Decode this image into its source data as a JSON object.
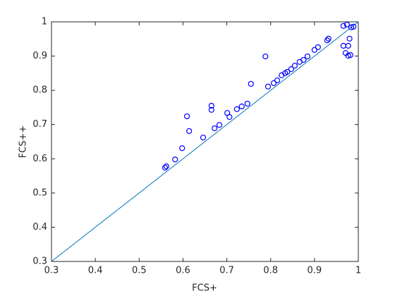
{
  "chart_data": {
    "type": "scatter",
    "xlabel": "FCS+",
    "ylabel": "FCS++",
    "xlim": [
      0.3,
      1
    ],
    "ylim": [
      0.3,
      1
    ],
    "xticks": [
      0.3,
      0.4,
      0.5,
      0.6,
      0.7,
      0.8,
      0.9,
      1
    ],
    "yticks": [
      0.3,
      0.4,
      0.5,
      0.6,
      0.7,
      0.8,
      0.9,
      1
    ],
    "grid": false,
    "reference_line": {
      "color": "#0072bd",
      "x": [
        0.3,
        1
      ],
      "values": [
        0.3,
        1
      ]
    },
    "series": [
      {
        "color": "#0000ff",
        "x": [
          0.559,
          0.562,
          0.582,
          0.598,
          0.609,
          0.614,
          0.646,
          0.665,
          0.665,
          0.672,
          0.683,
          0.701,
          0.706,
          0.723,
          0.734,
          0.747,
          0.755,
          0.788,
          0.794,
          0.807,
          0.815,
          0.825,
          0.833,
          0.838,
          0.847,
          0.855,
          0.866,
          0.875,
          0.884,
          0.9,
          0.908,
          0.929,
          0.932,
          0.966,
          0.971,
          0.977,
          0.982,
          0.977,
          0.98,
          0.966,
          0.974,
          0.984,
          0.989
        ],
        "values": [
          0.574,
          0.578,
          0.598,
          0.631,
          0.724,
          0.681,
          0.662,
          0.743,
          0.755,
          0.689,
          0.699,
          0.734,
          0.722,
          0.745,
          0.753,
          0.761,
          0.819,
          0.899,
          0.811,
          0.821,
          0.829,
          0.844,
          0.85,
          0.854,
          0.862,
          0.872,
          0.883,
          0.889,
          0.899,
          0.918,
          0.926,
          0.946,
          0.951,
          0.93,
          0.909,
          0.901,
          0.903,
          0.93,
          0.951,
          0.988,
          0.992,
          0.984,
          0.986
        ]
      }
    ]
  }
}
